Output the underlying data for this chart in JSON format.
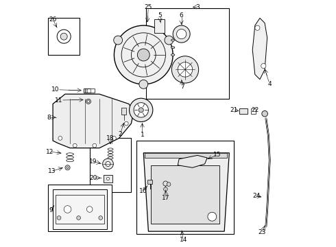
{
  "bg_color": "#ffffff",
  "fig_width": 4.9,
  "fig_height": 3.6,
  "dpi": 100
}
